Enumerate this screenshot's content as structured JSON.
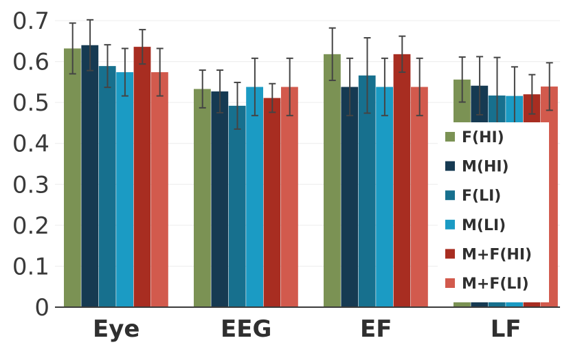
{
  "chart_data": {
    "type": "bar",
    "title": "",
    "xlabel": "",
    "ylabel": "",
    "ylim": [
      0,
      0.7
    ],
    "yticks": [
      "0",
      "0.1",
      "0.2",
      "0.3",
      "0.4",
      "0.5",
      "0.6",
      "0.7"
    ],
    "ytick_values": [
      0,
      0.1,
      0.2,
      0.3,
      0.4,
      0.5,
      0.6,
      0.7
    ],
    "categories": [
      "Eye",
      "EEG",
      "EF",
      "LF"
    ],
    "legend_position": "bottom-right",
    "series": [
      {
        "name": "F(HI)",
        "color": "#7b9254",
        "values": [
          0.632,
          0.533,
          0.618,
          0.556
        ],
        "errors": [
          0.062,
          0.046,
          0.064,
          0.055
        ]
      },
      {
        "name": "M(HI)",
        "color": "#163a52",
        "values": [
          0.64,
          0.527,
          0.538,
          0.541
        ],
        "errors": [
          0.062,
          0.052,
          0.07,
          0.071
        ]
      },
      {
        "name": "F(LI)",
        "color": "#17708e",
        "values": [
          0.589,
          0.492,
          0.566,
          0.517
        ],
        "errors": [
          0.052,
          0.057,
          0.092,
          0.093
        ]
      },
      {
        "name": "M(LI)",
        "color": "#1b9bc4",
        "values": [
          0.574,
          0.538,
          0.538,
          0.516
        ],
        "errors": [
          0.058,
          0.07,
          0.07,
          0.071
        ]
      },
      {
        "name": "M+F(HI)",
        "color": "#a82d21",
        "values": [
          0.636,
          0.511,
          0.618,
          0.52
        ],
        "errors": [
          0.042,
          0.035,
          0.044,
          0.048
        ]
      },
      {
        "name": "M+F(LI)",
        "color": "#d25a4d",
        "values": [
          0.574,
          0.538,
          0.538,
          0.539
        ],
        "errors": [
          0.058,
          0.07,
          0.07,
          0.058
        ]
      }
    ]
  }
}
